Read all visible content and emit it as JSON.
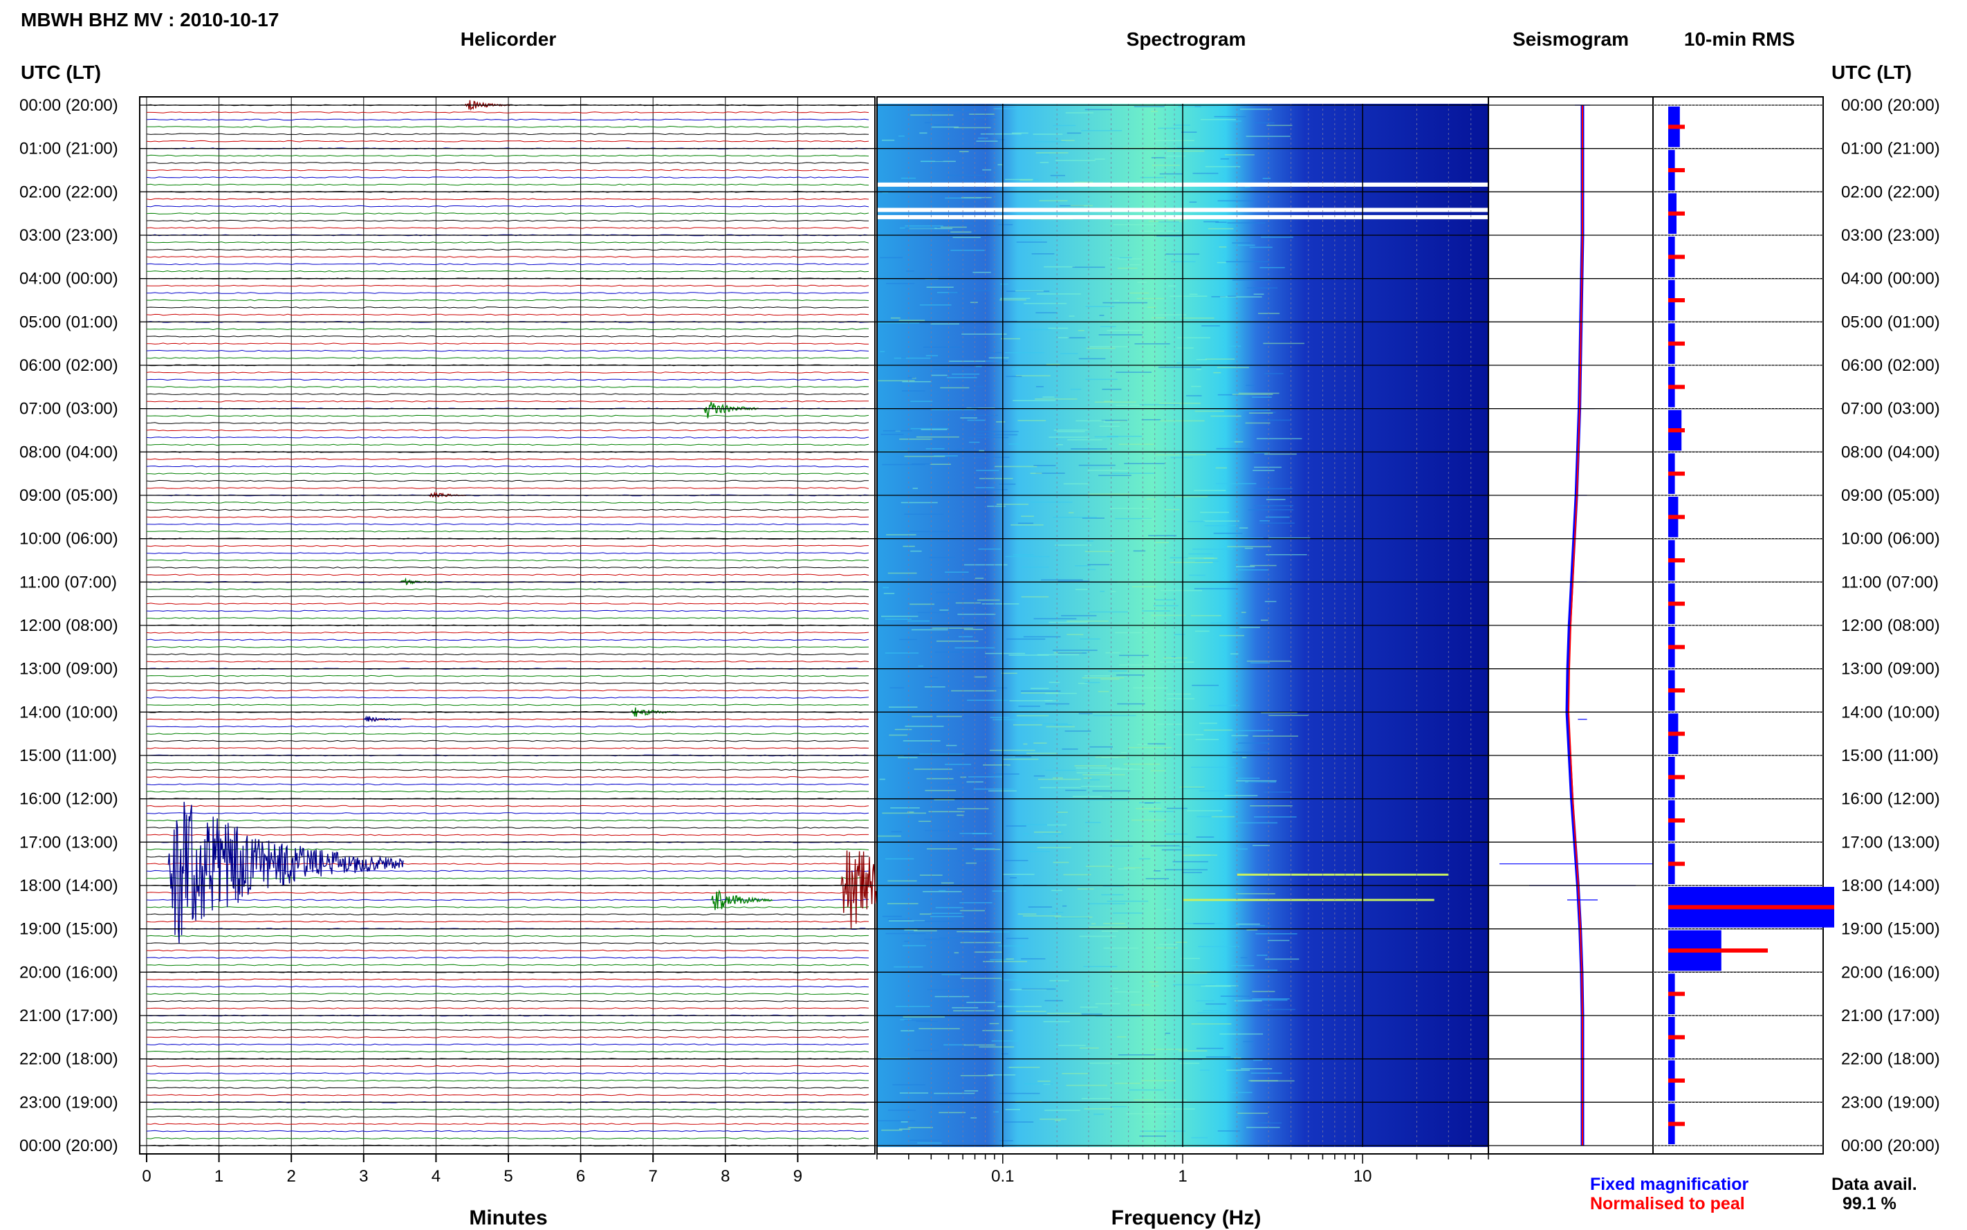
{
  "title": "MBWH BHZ MV : 2010-10-17",
  "headings": {
    "helicorder": "Helicorder",
    "spectrogram": "Spectrogram",
    "seismogram": "Seismogram",
    "rms": "10-min RMS",
    "utc_left": "UTC (LT)",
    "utc_right": "UTC (LT)"
  },
  "x_axis": {
    "helicorder_label": "Minutes",
    "helicorder_ticks": [
      "0",
      "1",
      "2",
      "3",
      "4",
      "5",
      "6",
      "7",
      "8",
      "9"
    ],
    "spectrogram_label": "Frequency (Hz)",
    "spectrogram_ticks": [
      "0.1",
      "1",
      "10"
    ]
  },
  "legend": {
    "fixed": "Fixed magnificatior",
    "normalised": "Normalised to peal",
    "avail_label": "Data avail.",
    "avail_value": "99.1 %"
  },
  "colors": {
    "trace_cycle": [
      "#000000",
      "#cc0000",
      "#0000cc",
      "#008000"
    ],
    "event_dark_red": "#8b0000",
    "event_green": "#008000",
    "event_blue": "#00008b",
    "spec_background": "#00008b",
    "spec_mid": "#00bfff",
    "spec_low": "#66ffcc",
    "rms_fixed": "#0000ff",
    "rms_normalised": "#ff0000"
  },
  "chart_data": [
    {
      "type": "line",
      "name": "helicorder",
      "xlabel": "Minutes",
      "xlim": [
        0,
        10
      ],
      "hours": [
        "00:00 (20:00)",
        "01:00 (21:00)",
        "02:00 (22:00)",
        "03:00 (23:00)",
        "04:00 (00:00)",
        "05:00 (01:00)",
        "06:00 (02:00)",
        "07:00 (03:00)",
        "08:00 (04:00)",
        "09:00 (05:00)",
        "10:00 (06:00)",
        "11:00 (07:00)",
        "12:00 (08:00)",
        "13:00 (09:00)",
        "14:00 (10:00)",
        "15:00 (11:00)",
        "16:00 (12:00)",
        "17:00 (13:00)",
        "18:00 (14:00)",
        "19:00 (15:00)",
        "20:00 (16:00)",
        "21:00 (17:00)",
        "22:00 (18:00)",
        "23:00 (19:00)",
        "00:00 (20:00)"
      ],
      "rows_per_hour": 6,
      "events": [
        {
          "time": "00:00",
          "minute": 4.4,
          "amplitude": 0.5,
          "color": "dark_red"
        },
        {
          "time": "07:00",
          "minute": 7.7,
          "amplitude": 0.8,
          "color": "green"
        },
        {
          "time": "09:00",
          "minute": 3.9,
          "amplitude": 0.3,
          "color": "dark_red"
        },
        {
          "time": "11:00",
          "minute": 3.5,
          "amplitude": 0.3,
          "color": "green"
        },
        {
          "time": "14:00",
          "minute": 6.7,
          "amplitude": 0.5,
          "color": "green"
        },
        {
          "time": "14:10",
          "minute": 3.0,
          "amplitude": 0.3,
          "color": "blue"
        },
        {
          "time": "17:30",
          "minute": 0.3,
          "amplitude": 6.0,
          "color": "blue"
        },
        {
          "time": "18:20",
          "minute": 7.8,
          "amplitude": 1.0,
          "color": "green"
        },
        {
          "time": "18:00",
          "minute": 9.6,
          "amplitude": 3.5,
          "color": "dark_red"
        }
      ]
    },
    {
      "type": "heatmap",
      "name": "spectrogram",
      "xlabel": "Frequency (Hz)",
      "x_scale": "log",
      "xlim": [
        0.02,
        50
      ],
      "gaps_utc": [
        "01:50",
        "02:25",
        "02:35"
      ],
      "features": [
        {
          "time": "17:45",
          "range_hz": [
            2,
            30
          ]
        },
        {
          "time": "18:20",
          "range_hz": [
            1,
            25
          ]
        }
      ]
    },
    {
      "type": "line",
      "name": "seismogram",
      "series": [
        {
          "values": [
            0.0,
            0.0,
            0.0,
            0.0,
            0.05,
            0.1,
            0.15,
            0.2,
            0.3,
            0.4,
            0.55,
            0.7,
            0.85,
            0.95,
            1.0,
            0.85,
            0.7,
            0.5,
            0.3,
            0.15,
            0.05,
            0.0,
            0.0,
            0.0,
            0.0
          ]
        }
      ]
    },
    {
      "type": "bar",
      "name": "10-min RMS",
      "categories_per_hour": 6,
      "series": [
        {
          "name": "Fixed magnificatior",
          "values": [
            0.35,
            0.2,
            0.25,
            0.2,
            0.2,
            0.2,
            0.2,
            0.4,
            0.2,
            0.3,
            0.2,
            0.2,
            0.2,
            0.2,
            0.3,
            0.2,
            0.2,
            0.2,
            5.0,
            1.6,
            0.2,
            0.2,
            0.2,
            0.2
          ]
        },
        {
          "name": "Normalised to peal",
          "values": [
            0.1,
            0.1,
            0.1,
            0.1,
            0.1,
            0.1,
            0.1,
            0.1,
            0.1,
            0.1,
            0.1,
            0.1,
            0.1,
            0.1,
            0.1,
            0.1,
            0.1,
            0.1,
            1.0,
            0.6,
            0.1,
            0.1,
            0.1,
            0.1
          ]
        }
      ],
      "data_availability_percent": 99.1
    }
  ]
}
